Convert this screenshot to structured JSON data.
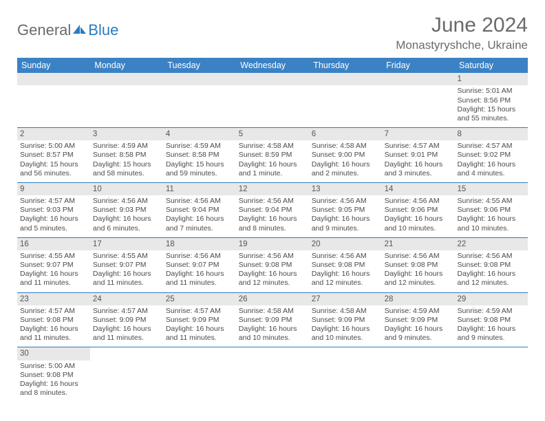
{
  "logo": {
    "part1": "General",
    "part2": "Blue"
  },
  "header": {
    "title": "June 2024",
    "location": "Monastyryshche, Ukraine"
  },
  "weekdays": [
    "Sunday",
    "Monday",
    "Tuesday",
    "Wednesday",
    "Thursday",
    "Friday",
    "Saturday"
  ],
  "colors": {
    "header_bg": "#3b82c4",
    "header_fg": "#ffffff",
    "rule": "#2b7bbf",
    "daybar": "#e8e8e8",
    "text": "#4a4a4a",
    "title": "#6a6a6a",
    "logo2": "#2b7bbf"
  },
  "weeks": [
    [
      {
        "blank": true
      },
      {
        "blank": true
      },
      {
        "blank": true
      },
      {
        "blank": true
      },
      {
        "blank": true
      },
      {
        "blank": true
      },
      {
        "n": "1",
        "sr": "Sunrise: 5:01 AM",
        "ss": "Sunset: 8:56 PM",
        "dl": "Daylight: 15 hours and 55 minutes."
      }
    ],
    [
      {
        "n": "2",
        "sr": "Sunrise: 5:00 AM",
        "ss": "Sunset: 8:57 PM",
        "dl": "Daylight: 15 hours and 56 minutes."
      },
      {
        "n": "3",
        "sr": "Sunrise: 4:59 AM",
        "ss": "Sunset: 8:58 PM",
        "dl": "Daylight: 15 hours and 58 minutes."
      },
      {
        "n": "4",
        "sr": "Sunrise: 4:59 AM",
        "ss": "Sunset: 8:58 PM",
        "dl": "Daylight: 15 hours and 59 minutes."
      },
      {
        "n": "5",
        "sr": "Sunrise: 4:58 AM",
        "ss": "Sunset: 8:59 PM",
        "dl": "Daylight: 16 hours and 1 minute."
      },
      {
        "n": "6",
        "sr": "Sunrise: 4:58 AM",
        "ss": "Sunset: 9:00 PM",
        "dl": "Daylight: 16 hours and 2 minutes."
      },
      {
        "n": "7",
        "sr": "Sunrise: 4:57 AM",
        "ss": "Sunset: 9:01 PM",
        "dl": "Daylight: 16 hours and 3 minutes."
      },
      {
        "n": "8",
        "sr": "Sunrise: 4:57 AM",
        "ss": "Sunset: 9:02 PM",
        "dl": "Daylight: 16 hours and 4 minutes."
      }
    ],
    [
      {
        "n": "9",
        "sr": "Sunrise: 4:57 AM",
        "ss": "Sunset: 9:03 PM",
        "dl": "Daylight: 16 hours and 5 minutes."
      },
      {
        "n": "10",
        "sr": "Sunrise: 4:56 AM",
        "ss": "Sunset: 9:03 PM",
        "dl": "Daylight: 16 hours and 6 minutes."
      },
      {
        "n": "11",
        "sr": "Sunrise: 4:56 AM",
        "ss": "Sunset: 9:04 PM",
        "dl": "Daylight: 16 hours and 7 minutes."
      },
      {
        "n": "12",
        "sr": "Sunrise: 4:56 AM",
        "ss": "Sunset: 9:04 PM",
        "dl": "Daylight: 16 hours and 8 minutes."
      },
      {
        "n": "13",
        "sr": "Sunrise: 4:56 AM",
        "ss": "Sunset: 9:05 PM",
        "dl": "Daylight: 16 hours and 9 minutes."
      },
      {
        "n": "14",
        "sr": "Sunrise: 4:56 AM",
        "ss": "Sunset: 9:06 PM",
        "dl": "Daylight: 16 hours and 10 minutes."
      },
      {
        "n": "15",
        "sr": "Sunrise: 4:55 AM",
        "ss": "Sunset: 9:06 PM",
        "dl": "Daylight: 16 hours and 10 minutes."
      }
    ],
    [
      {
        "n": "16",
        "sr": "Sunrise: 4:55 AM",
        "ss": "Sunset: 9:07 PM",
        "dl": "Daylight: 16 hours and 11 minutes."
      },
      {
        "n": "17",
        "sr": "Sunrise: 4:55 AM",
        "ss": "Sunset: 9:07 PM",
        "dl": "Daylight: 16 hours and 11 minutes."
      },
      {
        "n": "18",
        "sr": "Sunrise: 4:56 AM",
        "ss": "Sunset: 9:07 PM",
        "dl": "Daylight: 16 hours and 11 minutes."
      },
      {
        "n": "19",
        "sr": "Sunrise: 4:56 AM",
        "ss": "Sunset: 9:08 PM",
        "dl": "Daylight: 16 hours and 12 minutes."
      },
      {
        "n": "20",
        "sr": "Sunrise: 4:56 AM",
        "ss": "Sunset: 9:08 PM",
        "dl": "Daylight: 16 hours and 12 minutes."
      },
      {
        "n": "21",
        "sr": "Sunrise: 4:56 AM",
        "ss": "Sunset: 9:08 PM",
        "dl": "Daylight: 16 hours and 12 minutes."
      },
      {
        "n": "22",
        "sr": "Sunrise: 4:56 AM",
        "ss": "Sunset: 9:08 PM",
        "dl": "Daylight: 16 hours and 12 minutes."
      }
    ],
    [
      {
        "n": "23",
        "sr": "Sunrise: 4:57 AM",
        "ss": "Sunset: 9:08 PM",
        "dl": "Daylight: 16 hours and 11 minutes."
      },
      {
        "n": "24",
        "sr": "Sunrise: 4:57 AM",
        "ss": "Sunset: 9:09 PM",
        "dl": "Daylight: 16 hours and 11 minutes."
      },
      {
        "n": "25",
        "sr": "Sunrise: 4:57 AM",
        "ss": "Sunset: 9:09 PM",
        "dl": "Daylight: 16 hours and 11 minutes."
      },
      {
        "n": "26",
        "sr": "Sunrise: 4:58 AM",
        "ss": "Sunset: 9:09 PM",
        "dl": "Daylight: 16 hours and 10 minutes."
      },
      {
        "n": "27",
        "sr": "Sunrise: 4:58 AM",
        "ss": "Sunset: 9:09 PM",
        "dl": "Daylight: 16 hours and 10 minutes."
      },
      {
        "n": "28",
        "sr": "Sunrise: 4:59 AM",
        "ss": "Sunset: 9:09 PM",
        "dl": "Daylight: 16 hours and 9 minutes."
      },
      {
        "n": "29",
        "sr": "Sunrise: 4:59 AM",
        "ss": "Sunset: 9:08 PM",
        "dl": "Daylight: 16 hours and 9 minutes."
      }
    ],
    [
      {
        "n": "30",
        "sr": "Sunrise: 5:00 AM",
        "ss": "Sunset: 9:08 PM",
        "dl": "Daylight: 16 hours and 8 minutes."
      },
      {
        "blank": true
      },
      {
        "blank": true
      },
      {
        "blank": true
      },
      {
        "blank": true
      },
      {
        "blank": true
      },
      {
        "blank": true
      }
    ]
  ]
}
